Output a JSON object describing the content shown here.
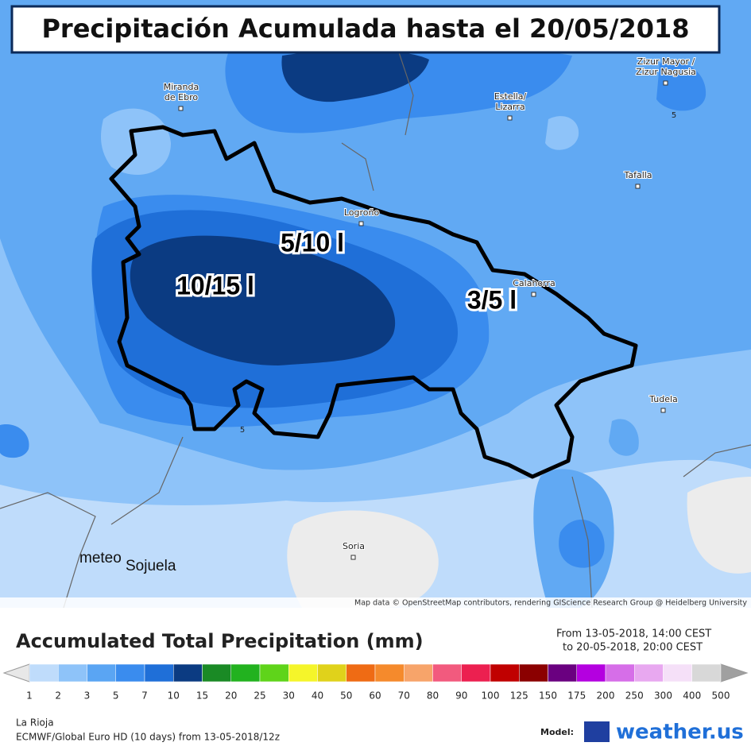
{
  "header": {
    "title": "Precipitación Acumulada hasta el 20/05/2018"
  },
  "map": {
    "places": [
      {
        "lines": [
          "Miranda",
          "de Ebro"
        ]
      },
      {
        "lines": [
          "Estella/",
          "Lizarra"
        ]
      },
      {
        "lines": [
          "Zizur Mayor /",
          "Zizur Nagusia"
        ]
      },
      {
        "lines": [
          "Tafalla"
        ]
      },
      {
        "lines": [
          "Logroño"
        ]
      },
      {
        "lines": [
          "Calahorra"
        ]
      },
      {
        "lines": [
          "Tudela"
        ]
      },
      {
        "lines": [
          "Soria"
        ]
      }
    ],
    "contour_labels": [
      "5",
      "5"
    ],
    "zone_labels": [
      "5/10 l",
      "10/15 l",
      "3/5 l"
    ],
    "watermark": [
      "meteo",
      "Sojuela"
    ],
    "attribution": "Map data © OpenStreetMap contributors, rendering GIScience Research Group @ Heidelberg University"
  },
  "legend": {
    "title": "Accumulated Total Precipitation (mm)",
    "period": [
      "From 13-05-2018, 14:00 CEST",
      "to 20-05-2018, 20:00 CEST"
    ],
    "ticks": [
      1,
      2,
      3,
      5,
      7,
      10,
      15,
      20,
      25,
      30,
      40,
      50,
      60,
      70,
      80,
      90,
      100,
      125,
      150,
      175,
      200,
      250,
      300,
      400,
      500
    ],
    "colors": [
      "#bfdcfb",
      "#8ec3f9",
      "#5aa5f3",
      "#3a8cee",
      "#1f6fd8",
      "#0b3b82",
      "#1a8a25",
      "#22b21f",
      "#5fd41a",
      "#f5f52a",
      "#e0d21b",
      "#ef6b14",
      "#f58a2c",
      "#f7a46a",
      "#f25a7e",
      "#ec2050",
      "#c00000",
      "#8b0000",
      "#6a0080",
      "#b400e0",
      "#d66ee8",
      "#e8a8f0",
      "#f5e0f8",
      "#d8d8d8"
    ]
  },
  "footer": {
    "region": "La Rioja",
    "source": "ECMWF/Global Euro HD (10 days) from 13-05-2018/12z",
    "model_label": "Model:",
    "brand": "weather.us"
  }
}
